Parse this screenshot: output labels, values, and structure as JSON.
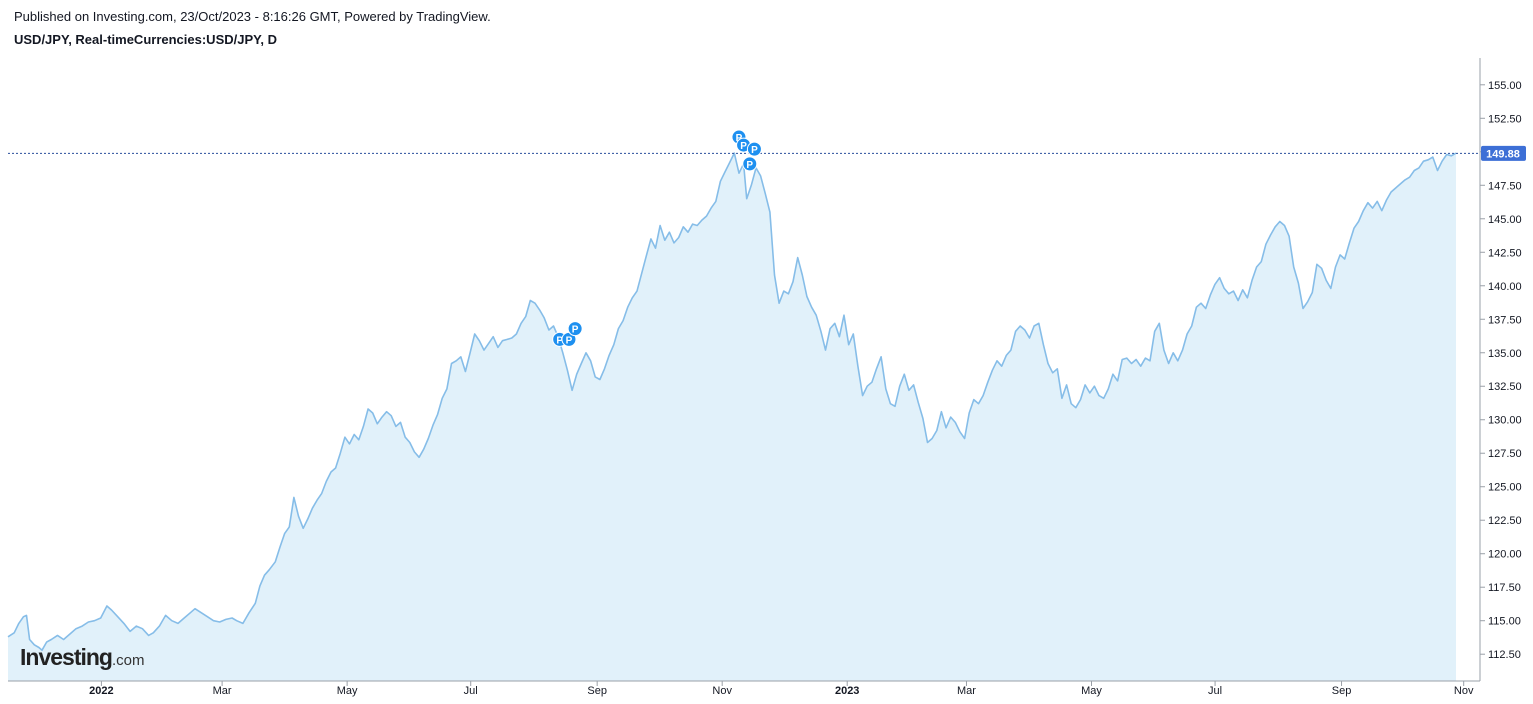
{
  "header": {
    "published": "Published on Investing.com, 23/Oct/2023 - 8:16:26 GMT, Powered by TradingView.",
    "symbol": "USD/JPY, Real-timeCurrencies:USD/JPY, D"
  },
  "logo": {
    "main": "Investing",
    "suffix": ".com"
  },
  "colors": {
    "line": "#86bde8",
    "fill": "#e1f1fa",
    "last_bg": "#3d6fd6",
    "marker": "#1e90f0",
    "dotted": "#2a4f9c"
  },
  "chart_data": {
    "type": "area",
    "ylim": [
      110.5,
      157.0
    ],
    "y_ticks": [
      "155.00",
      "152.50",
      "150.00",
      "147.50",
      "145.00",
      "142.50",
      "140.00",
      "137.50",
      "135.00",
      "132.50",
      "130.00",
      "127.50",
      "125.00",
      "122.50",
      "120.00",
      "117.50",
      "115.00",
      "112.50"
    ],
    "x_ticks": [
      {
        "label": "2022",
        "t": 0.065,
        "bold": true
      },
      {
        "label": "Mar",
        "t": 0.149,
        "bold": false
      },
      {
        "label": "May",
        "t": 0.236,
        "bold": false
      },
      {
        "label": "Jul",
        "t": 0.322,
        "bold": false
      },
      {
        "label": "Sep",
        "t": 0.41,
        "bold": false
      },
      {
        "label": "Nov",
        "t": 0.497,
        "bold": false
      },
      {
        "label": "2023",
        "t": 0.584,
        "bold": true
      },
      {
        "label": "Mar",
        "t": 0.667,
        "bold": false
      },
      {
        "label": "May",
        "t": 0.754,
        "bold": false
      },
      {
        "label": "Jul",
        "t": 0.84,
        "bold": false
      },
      {
        "label": "Sep",
        "t": 0.928,
        "bold": false
      },
      {
        "label": "Nov",
        "t": 1.013,
        "bold": false
      }
    ],
    "last_value": "149.88",
    "points": [
      [
        0,
        113.8
      ],
      [
        0.004,
        114.1
      ],
      [
        0.007,
        114.8
      ],
      [
        0.01,
        115.3
      ],
      [
        0.012,
        115.4
      ],
      [
        0.014,
        113.6
      ],
      [
        0.017,
        113.2
      ],
      [
        0.02,
        113.0
      ],
      [
        0.022,
        112.8
      ],
      [
        0.025,
        113.4
      ],
      [
        0.028,
        113.6
      ],
      [
        0.032,
        113.9
      ],
      [
        0.036,
        113.6
      ],
      [
        0.04,
        114.0
      ],
      [
        0.044,
        114.4
      ],
      [
        0.048,
        114.6
      ],
      [
        0.052,
        114.9
      ],
      [
        0.056,
        115.0
      ],
      [
        0.06,
        115.2
      ],
      [
        0.064,
        116.1
      ],
      [
        0.067,
        115.8
      ],
      [
        0.071,
        115.3
      ],
      [
        0.075,
        114.8
      ],
      [
        0.079,
        114.2
      ],
      [
        0.083,
        114.6
      ],
      [
        0.087,
        114.4
      ],
      [
        0.091,
        113.9
      ],
      [
        0.094,
        114.1
      ],
      [
        0.098,
        114.6
      ],
      [
        0.102,
        115.4
      ],
      [
        0.106,
        115.0
      ],
      [
        0.11,
        114.8
      ],
      [
        0.114,
        115.2
      ],
      [
        0.118,
        115.6
      ],
      [
        0.121,
        115.9
      ],
      [
        0.125,
        115.6
      ],
      [
        0.129,
        115.3
      ],
      [
        0.133,
        115.0
      ],
      [
        0.137,
        114.9
      ],
      [
        0.141,
        115.1
      ],
      [
        0.145,
        115.2
      ],
      [
        0.148,
        115.0
      ],
      [
        0.152,
        114.8
      ],
      [
        0.156,
        115.6
      ],
      [
        0.16,
        116.3
      ],
      [
        0.163,
        117.6
      ],
      [
        0.166,
        118.4
      ],
      [
        0.169,
        118.8
      ],
      [
        0.173,
        119.4
      ],
      [
        0.176,
        120.5
      ],
      [
        0.179,
        121.5
      ],
      [
        0.182,
        122.0
      ],
      [
        0.185,
        124.2
      ],
      [
        0.188,
        122.8
      ],
      [
        0.191,
        121.9
      ],
      [
        0.194,
        122.6
      ],
      [
        0.197,
        123.4
      ],
      [
        0.2,
        124.0
      ],
      [
        0.203,
        124.5
      ],
      [
        0.206,
        125.4
      ],
      [
        0.209,
        126.1
      ],
      [
        0.212,
        126.4
      ],
      [
        0.215,
        127.5
      ],
      [
        0.218,
        128.7
      ],
      [
        0.221,
        128.2
      ],
      [
        0.224,
        128.9
      ],
      [
        0.227,
        128.5
      ],
      [
        0.23,
        129.5
      ],
      [
        0.233,
        130.8
      ],
      [
        0.236,
        130.5
      ],
      [
        0.239,
        129.7
      ],
      [
        0.242,
        130.2
      ],
      [
        0.245,
        130.6
      ],
      [
        0.248,
        130.3
      ],
      [
        0.251,
        129.5
      ],
      [
        0.254,
        129.8
      ],
      [
        0.257,
        128.7
      ],
      [
        0.26,
        128.3
      ],
      [
        0.263,
        127.6
      ],
      [
        0.266,
        127.2
      ],
      [
        0.269,
        127.8
      ],
      [
        0.272,
        128.6
      ],
      [
        0.275,
        129.6
      ],
      [
        0.278,
        130.4
      ],
      [
        0.281,
        131.6
      ],
      [
        0.284,
        132.3
      ],
      [
        0.287,
        134.2
      ],
      [
        0.29,
        134.4
      ],
      [
        0.293,
        134.7
      ],
      [
        0.296,
        133.6
      ],
      [
        0.299,
        135.0
      ],
      [
        0.302,
        136.4
      ],
      [
        0.305,
        135.9
      ],
      [
        0.308,
        135.2
      ],
      [
        0.311,
        135.7
      ],
      [
        0.314,
        136.2
      ],
      [
        0.317,
        135.4
      ],
      [
        0.32,
        135.9
      ],
      [
        0.323,
        136.0
      ],
      [
        0.326,
        136.1
      ],
      [
        0.329,
        136.4
      ],
      [
        0.332,
        137.2
      ],
      [
        0.335,
        137.7
      ],
      [
        0.338,
        138.9
      ],
      [
        0.341,
        138.7
      ],
      [
        0.344,
        138.2
      ],
      [
        0.347,
        137.6
      ],
      [
        0.35,
        136.7
      ],
      [
        0.353,
        137.0
      ],
      [
        0.356,
        136.2
      ],
      [
        0.359,
        135.0
      ],
      [
        0.362,
        133.7
      ],
      [
        0.365,
        132.2
      ],
      [
        0.368,
        133.4
      ],
      [
        0.371,
        134.2
      ],
      [
        0.374,
        135.0
      ],
      [
        0.377,
        134.4
      ],
      [
        0.38,
        133.2
      ],
      [
        0.383,
        133.0
      ],
      [
        0.386,
        133.8
      ],
      [
        0.389,
        134.8
      ],
      [
        0.392,
        135.6
      ],
      [
        0.395,
        136.8
      ],
      [
        0.398,
        137.4
      ],
      [
        0.401,
        138.4
      ],
      [
        0.404,
        139.1
      ],
      [
        0.407,
        139.6
      ],
      [
        0.41,
        140.9
      ],
      [
        0.413,
        142.2
      ],
      [
        0.416,
        143.5
      ],
      [
        0.419,
        142.8
      ],
      [
        0.422,
        144.5
      ],
      [
        0.425,
        143.4
      ],
      [
        0.428,
        144.0
      ],
      [
        0.431,
        143.2
      ],
      [
        0.434,
        143.6
      ],
      [
        0.437,
        144.4
      ],
      [
        0.44,
        144.0
      ],
      [
        0.443,
        144.6
      ],
      [
        0.446,
        144.5
      ],
      [
        0.449,
        144.9
      ],
      [
        0.452,
        145.2
      ],
      [
        0.455,
        145.8
      ],
      [
        0.458,
        146.3
      ],
      [
        0.461,
        147.8
      ],
      [
        0.464,
        148.5
      ],
      [
        0.467,
        149.2
      ],
      [
        0.47,
        149.9
      ],
      [
        0.473,
        148.4
      ],
      [
        0.476,
        149.1
      ],
      [
        0.478,
        146.5
      ],
      [
        0.481,
        147.5
      ],
      [
        0.484,
        148.8
      ],
      [
        0.487,
        148.2
      ],
      [
        0.49,
        146.9
      ],
      [
        0.493,
        145.5
      ],
      [
        0.496,
        140.8
      ],
      [
        0.499,
        138.7
      ],
      [
        0.502,
        139.6
      ],
      [
        0.505,
        139.4
      ],
      [
        0.508,
        140.3
      ],
      [
        0.511,
        142.1
      ],
      [
        0.514,
        140.8
      ],
      [
        0.517,
        139.2
      ],
      [
        0.52,
        138.4
      ],
      [
        0.523,
        137.8
      ],
      [
        0.526,
        136.6
      ],
      [
        0.529,
        135.2
      ],
      [
        0.532,
        136.8
      ],
      [
        0.535,
        137.2
      ],
      [
        0.538,
        136.2
      ],
      [
        0.541,
        137.8
      ],
      [
        0.544,
        135.6
      ],
      [
        0.547,
        136.4
      ],
      [
        0.55,
        134.0
      ],
      [
        0.553,
        131.8
      ],
      [
        0.556,
        132.5
      ],
      [
        0.559,
        132.8
      ],
      [
        0.562,
        133.8
      ],
      [
        0.565,
        134.7
      ],
      [
        0.568,
        132.3
      ],
      [
        0.571,
        131.2
      ],
      [
        0.574,
        131.0
      ],
      [
        0.577,
        132.5
      ],
      [
        0.58,
        133.4
      ],
      [
        0.583,
        132.2
      ],
      [
        0.586,
        132.6
      ],
      [
        0.589,
        131.3
      ],
      [
        0.592,
        130.1
      ],
      [
        0.595,
        128.3
      ],
      [
        0.598,
        128.6
      ],
      [
        0.601,
        129.2
      ],
      [
        0.604,
        130.6
      ],
      [
        0.607,
        129.4
      ],
      [
        0.61,
        130.2
      ],
      [
        0.613,
        129.8
      ],
      [
        0.616,
        129.1
      ],
      [
        0.619,
        128.6
      ],
      [
        0.622,
        130.5
      ],
      [
        0.625,
        131.5
      ],
      [
        0.628,
        131.2
      ],
      [
        0.631,
        131.8
      ],
      [
        0.634,
        132.8
      ],
      [
        0.637,
        133.7
      ],
      [
        0.64,
        134.4
      ],
      [
        0.643,
        134.0
      ],
      [
        0.646,
        134.8
      ],
      [
        0.649,
        135.2
      ],
      [
        0.652,
        136.6
      ],
      [
        0.655,
        137.0
      ],
      [
        0.658,
        136.7
      ],
      [
        0.661,
        136.1
      ],
      [
        0.664,
        137.0
      ],
      [
        0.667,
        137.2
      ],
      [
        0.67,
        135.6
      ],
      [
        0.673,
        134.2
      ],
      [
        0.676,
        133.5
      ],
      [
        0.679,
        133.8
      ],
      [
        0.682,
        131.6
      ],
      [
        0.685,
        132.6
      ],
      [
        0.688,
        131.2
      ],
      [
        0.691,
        130.9
      ],
      [
        0.694,
        131.5
      ],
      [
        0.697,
        132.6
      ],
      [
        0.7,
        132.0
      ],
      [
        0.703,
        132.5
      ],
      [
        0.706,
        131.8
      ],
      [
        0.709,
        131.6
      ],
      [
        0.712,
        132.3
      ],
      [
        0.715,
        133.4
      ],
      [
        0.718,
        132.9
      ],
      [
        0.721,
        134.5
      ],
      [
        0.724,
        134.6
      ],
      [
        0.727,
        134.2
      ],
      [
        0.73,
        134.5
      ],
      [
        0.733,
        134.0
      ],
      [
        0.736,
        134.6
      ],
      [
        0.739,
        134.4
      ],
      [
        0.742,
        136.6
      ],
      [
        0.745,
        137.2
      ],
      [
        0.748,
        135.2
      ],
      [
        0.751,
        134.2
      ],
      [
        0.754,
        135.0
      ],
      [
        0.757,
        134.4
      ],
      [
        0.76,
        135.2
      ],
      [
        0.763,
        136.4
      ],
      [
        0.766,
        137.0
      ],
      [
        0.769,
        138.4
      ],
      [
        0.772,
        138.7
      ],
      [
        0.775,
        138.3
      ],
      [
        0.778,
        139.3
      ],
      [
        0.781,
        140.1
      ],
      [
        0.784,
        140.6
      ],
      [
        0.787,
        139.8
      ],
      [
        0.79,
        139.4
      ],
      [
        0.793,
        139.6
      ],
      [
        0.796,
        138.9
      ],
      [
        0.799,
        139.7
      ],
      [
        0.802,
        139.1
      ],
      [
        0.805,
        140.4
      ],
      [
        0.808,
        141.4
      ],
      [
        0.811,
        141.8
      ],
      [
        0.814,
        143.1
      ],
      [
        0.817,
        143.8
      ],
      [
        0.82,
        144.4
      ],
      [
        0.823,
        144.8
      ],
      [
        0.826,
        144.5
      ],
      [
        0.829,
        143.7
      ],
      [
        0.832,
        141.4
      ],
      [
        0.835,
        140.2
      ],
      [
        0.838,
        138.3
      ],
      [
        0.841,
        138.8
      ],
      [
        0.844,
        139.5
      ],
      [
        0.847,
        141.6
      ],
      [
        0.85,
        141.3
      ],
      [
        0.853,
        140.4
      ],
      [
        0.856,
        139.8
      ],
      [
        0.859,
        141.4
      ],
      [
        0.862,
        142.3
      ],
      [
        0.865,
        142.0
      ],
      [
        0.868,
        143.2
      ],
      [
        0.871,
        144.3
      ],
      [
        0.874,
        144.8
      ],
      [
        0.877,
        145.6
      ],
      [
        0.88,
        146.2
      ],
      [
        0.883,
        145.8
      ],
      [
        0.886,
        146.3
      ],
      [
        0.889,
        145.6
      ],
      [
        0.892,
        146.4
      ],
      [
        0.895,
        147.0
      ],
      [
        0.898,
        147.3
      ],
      [
        0.901,
        147.6
      ],
      [
        0.904,
        147.9
      ],
      [
        0.907,
        148.1
      ],
      [
        0.91,
        148.6
      ],
      [
        0.913,
        148.8
      ],
      [
        0.916,
        149.3
      ],
      [
        0.919,
        149.4
      ],
      [
        0.922,
        149.6
      ],
      [
        0.925,
        148.6
      ],
      [
        0.928,
        149.3
      ],
      [
        0.931,
        149.8
      ],
      [
        0.934,
        149.7
      ],
      [
        0.937,
        149.9
      ]
    ],
    "markers": [
      {
        "label": "P",
        "t": 0.357,
        "v": 136.0
      },
      {
        "label": "P",
        "t": 0.363,
        "v": 136.0
      },
      {
        "label": "P",
        "t": 0.367,
        "v": 136.8
      },
      {
        "label": "P",
        "t": 0.473,
        "v": 151.1
      },
      {
        "label": "P",
        "t": 0.476,
        "v": 150.5
      },
      {
        "label": "P",
        "t": 0.483,
        "v": 150.2
      },
      {
        "label": "P",
        "t": 0.48,
        "v": 149.1
      }
    ]
  }
}
